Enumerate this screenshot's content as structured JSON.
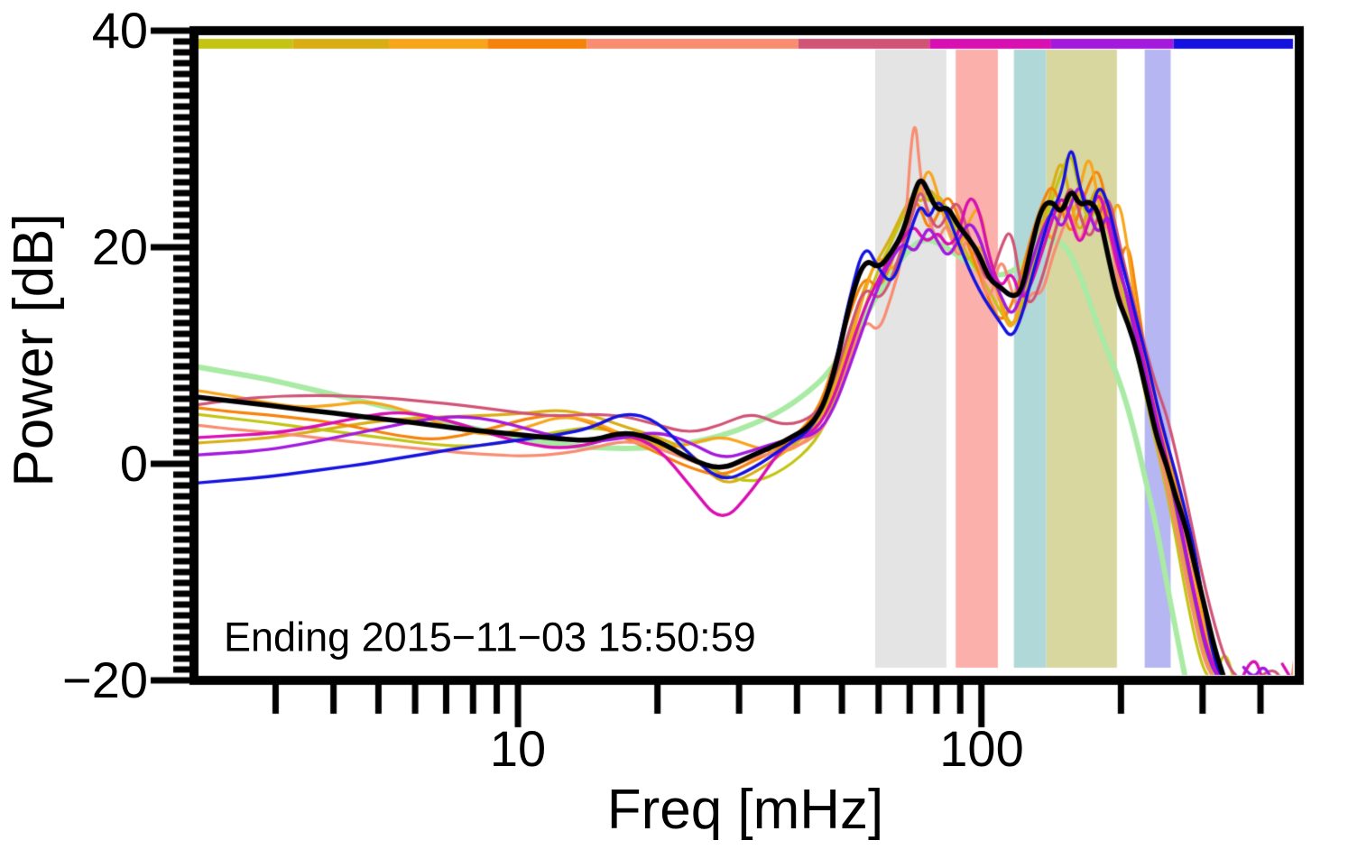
{
  "figure": {
    "annotation": "Ending 2015−11−03 15:50:59",
    "background": "#ffffff",
    "frame_color": "#000000"
  },
  "axes": {
    "x": {
      "label": "Freq [mHz]",
      "scale": "log",
      "min": 2,
      "max": 485,
      "major_ticks": [
        10,
        100
      ],
      "major_tick_labels": [
        "10",
        "100"
      ],
      "minor_ticks": [
        3,
        4,
        5,
        6,
        7,
        8,
        9,
        20,
        30,
        40,
        50,
        60,
        70,
        80,
        90,
        200,
        300,
        400
      ]
    },
    "y": {
      "label": "Power [dB]",
      "min": -20,
      "max": 40,
      "major_ticks": [
        40,
        20,
        0,
        -20
      ],
      "major_tick_labels": [
        "40",
        "20",
        "0",
        "−20"
      ],
      "minor_tick_step": 1
    }
  },
  "time_segment_bar": {
    "segments": [
      {
        "name": "window-1",
        "color": "#c3c414",
        "start": 0.0,
        "end": 0.086
      },
      {
        "name": "window-2",
        "color": "#d8ae14",
        "start": 0.086,
        "end": 0.174
      },
      {
        "name": "window-3",
        "color": "#f8a51b",
        "start": 0.174,
        "end": 0.264
      },
      {
        "name": "window-4",
        "color": "#f5830b",
        "start": 0.264,
        "end": 0.355
      },
      {
        "name": "window-5",
        "color": "#f88d72",
        "start": 0.355,
        "end": 0.548
      },
      {
        "name": "window-6",
        "color": "#d05476",
        "start": 0.548,
        "end": 0.668
      },
      {
        "name": "window-7",
        "color": "#d810b2",
        "start": 0.668,
        "end": 0.779
      },
      {
        "name": "window-8",
        "color": "#a31add",
        "start": 0.779,
        "end": 0.891
      },
      {
        "name": "window-9",
        "color": "#1512e0",
        "start": 0.891,
        "end": 1.0
      }
    ]
  },
  "bands": [
    {
      "name": "band-gray",
      "color": "#e4e4e4",
      "f1": 59,
      "f2": 84
    },
    {
      "name": "band-pink",
      "color": "#fbb0ab",
      "f1": 88,
      "f2": 108.5
    },
    {
      "name": "band-teal",
      "color": "#b0d8d8",
      "f1": 117.5,
      "f2": 138
    },
    {
      "name": "band-olive",
      "color": "#d8d7a0",
      "f1": 138,
      "f2": 196
    },
    {
      "name": "band-lavender",
      "color": "#b6b6f2",
      "f1": 225,
      "f2": 256
    }
  ],
  "chart_data": {
    "type": "line",
    "title": "",
    "xlabel": "Freq [mHz]",
    "ylabel": "Power [dB]",
    "xscale": "log",
    "xlim": [
      2,
      485
    ],
    "ylim": [
      -20,
      40
    ],
    "grid": false,
    "legend": "none",
    "x": [
      2,
      2.4,
      2.9,
      3.4,
      4,
      4.7,
      5.5,
      6.5,
      7.6,
      9,
      10.5,
      12.3,
      14.4,
      17,
      20,
      23.5,
      27.5,
      32,
      37.5,
      44,
      48,
      52,
      56,
      60,
      64,
      68,
      71.5,
      74,
      77,
      80.5,
      84.5,
      89,
      94,
      99,
      104,
      110,
      116,
      122,
      128,
      135,
      142,
      149,
      156,
      163,
      171,
      179,
      188,
      197,
      207,
      217,
      228,
      239,
      251,
      263,
      276,
      290,
      304,
      319,
      335,
      351,
      368,
      386,
      405,
      425,
      446,
      468,
      482
    ],
    "series": [
      {
        "name": "smooth-model",
        "color": "#a9eaa4",
        "width": 6,
        "values": [
          9.0,
          8.4,
          7.8,
          7.1,
          6.4,
          5.7,
          5.0,
          4.2,
          3.5,
          2.8,
          2.2,
          1.8,
          1.5,
          1.4,
          1.5,
          1.9,
          2.6,
          3.6,
          5.0,
          7.2,
          9.0,
          11.2,
          13.5,
          15.8,
          17.8,
          19.2,
          20.2,
          20.6,
          20.7,
          20.4,
          19.9,
          19.2,
          18.5,
          17.9,
          17.5,
          17.4,
          17.7,
          18.4,
          19.3,
          20.2,
          20.7,
          20.4,
          19.3,
          17.5,
          15.0,
          12.5,
          10.2,
          8.0,
          5.2,
          1.8,
          -2.2,
          -6.0,
          -11.0,
          -15.5,
          -20,
          null,
          null,
          null,
          null,
          null,
          null,
          null,
          null,
          null,
          null,
          null,
          null
        ]
      },
      {
        "name": "psd-window-2-gold",
        "color": "#d8ae14",
        "width": 3.2,
        "values": [
          1.9,
          2.1,
          2.4,
          2.8,
          3.3,
          3.8,
          4.1,
          4.3,
          4.4,
          4.5,
          4.7,
          5.0,
          4.5,
          3.4,
          2.5,
          1.2,
          -2.1,
          -1.0,
          1.0,
          3.4,
          7.0,
          12.0,
          16.5,
          19.0,
          21.0,
          23.5,
          25.0,
          24.0,
          25.5,
          24.5,
          22.0,
          20.0,
          18.5,
          20.5,
          18.0,
          15.0,
          12.5,
          14.0,
          18.0,
          22.0,
          25.5,
          28.5,
          24.0,
          21.0,
          24.0,
          26.0,
          22.0,
          18.5,
          15.0,
          11.5,
          7.0,
          3.0,
          -1.0,
          -5.0,
          -9.5,
          -14.0,
          -18.0,
          -20,
          null,
          null,
          null,
          null,
          null,
          null,
          null,
          null,
          null
        ]
      },
      {
        "name": "psd-window-1-yellowgreen",
        "color": "#c3c414",
        "width": 3.2,
        "values": [
          4.6,
          4.2,
          3.8,
          3.4,
          3.0,
          2.6,
          2.2,
          1.8,
          1.6,
          1.8,
          2.4,
          3.0,
          3.4,
          2.8,
          1.8,
          0.6,
          -1.0,
          -1.8,
          -0.6,
          2.0,
          5.5,
          10.0,
          14.5,
          18.0,
          20.5,
          23.0,
          24.5,
          25.5,
          24.0,
          25.0,
          23.5,
          21.0,
          19.0,
          17.5,
          16.0,
          14.0,
          12.5,
          14.5,
          17.5,
          21.0,
          24.5,
          27.0,
          29.0,
          25.0,
          22.0,
          24.5,
          21.5,
          17.5,
          14.0,
          10.0,
          5.5,
          1.5,
          -2.5,
          -7.0,
          -12.0,
          -16.5,
          -19.5,
          -20,
          -17.0,
          -20,
          null,
          null,
          null,
          null,
          null,
          null,
          null
        ]
      },
      {
        "name": "psd-window-4-darkorange",
        "color": "#f5830b",
        "width": 3.2,
        "values": [
          5.2,
          4.8,
          4.5,
          4.2,
          3.8,
          3.2,
          2.6,
          2.2,
          2.6,
          3.4,
          4.2,
          4.6,
          3.8,
          2.4,
          1.0,
          -0.4,
          -1.2,
          0.2,
          1.6,
          4.5,
          9.0,
          14.0,
          17.5,
          16.0,
          18.5,
          22.0,
          24.5,
          23.5,
          21.5,
          23.0,
          25.0,
          23.0,
          20.0,
          17.5,
          15.0,
          13.0,
          14.5,
          17.5,
          21.0,
          24.0,
          26.0,
          23.5,
          21.0,
          23.5,
          26.0,
          27.5,
          23.0,
          18.0,
          21.0,
          15.0,
          9.0,
          5.5,
          2.0,
          -1.5,
          -5.5,
          -10.0,
          -14.5,
          -18.5,
          -20,
          null,
          null,
          null,
          null,
          null,
          null,
          null,
          null
        ]
      },
      {
        "name": "psd-window-3-orange",
        "color": "#f8a51b",
        "width": 3.2,
        "values": [
          6.8,
          6.3,
          5.6,
          5.2,
          5.4,
          5.8,
          5.2,
          4.0,
          3.0,
          2.6,
          3.4,
          4.4,
          4.0,
          2.6,
          1.4,
          1.8,
          2.6,
          1.6,
          0.8,
          2.8,
          6.5,
          11.0,
          16.0,
          19.5,
          17.5,
          20.0,
          24.0,
          25.5,
          27.5,
          25.0,
          21.5,
          19.5,
          22.5,
          24.0,
          19.0,
          14.5,
          12.0,
          15.5,
          20.5,
          23.0,
          20.0,
          24.5,
          22.0,
          25.5,
          29.0,
          24.0,
          21.0,
          25.0,
          20.0,
          13.0,
          8.5,
          4.5,
          1.0,
          -2.5,
          -6.5,
          -11.0,
          -15.5,
          -19.5,
          -20,
          null,
          null,
          null,
          null,
          null,
          null,
          null,
          null
        ]
      },
      {
        "name": "psd-window-5-salmon",
        "color": "#f88d72",
        "width": 3.2,
        "values": [
          3.6,
          3.2,
          2.9,
          2.6,
          2.2,
          1.9,
          1.6,
          1.3,
          1.0,
          0.8,
          0.7,
          0.9,
          1.4,
          2.2,
          1.5,
          0.3,
          -0.7,
          0.6,
          1.2,
          2.4,
          5.0,
          9.5,
          13.5,
          12.0,
          15.5,
          19.5,
          33.5,
          26.0,
          22.5,
          20.5,
          22.5,
          18.5,
          21.5,
          18.5,
          14.5,
          19.5,
          16.0,
          13.5,
          16.0,
          15.5,
          19.0,
          21.5,
          23.5,
          20.0,
          23.5,
          21.0,
          22.5,
          16.5,
          13.0,
          10.0,
          6.0,
          2.0,
          -2.0,
          -6.0,
          -10.5,
          -15.0,
          -18.5,
          -20,
          null,
          null,
          null,
          null,
          null,
          null,
          null,
          -19.8,
          -15.3
        ]
      },
      {
        "name": "psd-window-6-crimson",
        "color": "#d05476",
        "width": 3.2,
        "values": [
          5.4,
          5.9,
          6.2,
          6.3,
          6.3,
          6.2,
          6.0,
          5.7,
          5.4,
          5.0,
          4.6,
          4.4,
          4.6,
          4.4,
          3.6,
          2.8,
          3.6,
          4.8,
          3.4,
          4.4,
          7.5,
          12.5,
          16.5,
          15.0,
          17.0,
          20.5,
          23.5,
          25.5,
          23.0,
          21.5,
          23.0,
          24.5,
          21.0,
          18.5,
          16.5,
          20.0,
          22.0,
          16.0,
          14.5,
          17.0,
          20.5,
          23.5,
          26.0,
          23.0,
          20.5,
          23.0,
          25.0,
          21.0,
          17.0,
          13.5,
          10.0,
          7.0,
          4.5,
          1.0,
          -3.0,
          -7.5,
          -11.5,
          -15.0,
          -18.0,
          -19.5,
          -20,
          null,
          -19.5,
          -18.8,
          -20,
          null,
          null
        ]
      },
      {
        "name": "psd-window-7-magenta",
        "color": "#d810b2",
        "width": 3.4,
        "values": [
          2.4,
          2.6,
          2.8,
          3.2,
          3.8,
          4.4,
          4.8,
          4.4,
          3.6,
          2.6,
          1.8,
          1.4,
          1.8,
          2.8,
          1.6,
          -2.0,
          -5.6,
          -2.5,
          1.8,
          3.0,
          6.0,
          10.5,
          14.5,
          17.0,
          19.5,
          21.0,
          22.0,
          21.0,
          20.5,
          21.5,
          20.0,
          21.0,
          25.0,
          23.5,
          19.0,
          16.0,
          18.0,
          15.0,
          16.5,
          19.5,
          22.5,
          25.0,
          22.5,
          20.0,
          22.5,
          25.5,
          22.0,
          18.0,
          15.5,
          12.0,
          8.0,
          4.0,
          0.5,
          -3.5,
          -8.0,
          -12.5,
          -16.5,
          -19.0,
          -20,
          null,
          -19.5,
          -17.5,
          -20,
          null,
          -18.5,
          -20,
          null
        ]
      },
      {
        "name": "psd-window-8-purple",
        "color": "#a31add",
        "width": 3.4,
        "values": [
          0.8,
          1.0,
          1.3,
          1.8,
          2.4,
          3.0,
          3.6,
          4.2,
          4.4,
          4.0,
          3.2,
          2.4,
          2.0,
          2.4,
          3.0,
          2.0,
          0.4,
          1.2,
          2.2,
          2.6,
          5.0,
          9.0,
          13.0,
          16.5,
          19.0,
          20.5,
          19.5,
          20.5,
          22.0,
          20.5,
          19.0,
          20.5,
          22.5,
          21.0,
          18.0,
          15.5,
          13.5,
          15.5,
          18.5,
          21.5,
          23.5,
          21.5,
          24.0,
          26.0,
          23.0,
          21.0,
          23.5,
          19.0,
          15.0,
          11.0,
          7.5,
          3.5,
          0.0,
          -4.0,
          -8.5,
          -13.0,
          -17.0,
          -19.5,
          -20,
          null,
          -18.8,
          -20,
          -18.5,
          -20,
          null,
          null,
          null
        ]
      },
      {
        "name": "psd-window-9-blue",
        "color": "#1512e0",
        "width": 3.4,
        "values": [
          -1.8,
          -1.5,
          -1.2,
          -0.8,
          -0.4,
          0.0,
          0.5,
          1.0,
          1.5,
          1.9,
          2.3,
          2.7,
          3.3,
          4.8,
          4.0,
          0.8,
          -1.7,
          -0.5,
          1.5,
          3.5,
          8.5,
          15.5,
          20.5,
          18.0,
          16.5,
          19.5,
          22.5,
          24.0,
          22.5,
          24.5,
          23.0,
          20.5,
          18.0,
          16.0,
          14.5,
          13.0,
          11.5,
          13.5,
          17.0,
          20.5,
          23.5,
          25.0,
          30.0,
          25.5,
          22.5,
          26.0,
          24.0,
          20.0,
          16.5,
          13.0,
          9.5,
          5.5,
          2.0,
          -1.0,
          -4.5,
          -8.5,
          -14.0,
          -18.5,
          -20,
          null,
          null,
          null,
          null,
          null,
          null,
          null,
          null
        ]
      },
      {
        "name": "mean-spectrum",
        "color": "#000000",
        "width": 5.5,
        "values": [
          6.2,
          5.8,
          5.4,
          5.0,
          4.7,
          4.3,
          4.0,
          3.6,
          3.2,
          2.9,
          2.6,
          2.3,
          2.1,
          3.0,
          2.2,
          0.4,
          -0.6,
          0.8,
          2.0,
          3.8,
          8.0,
          15.0,
          19.0,
          18.0,
          19.5,
          21.5,
          25.0,
          26.5,
          25.0,
          23.3,
          23.8,
          22.0,
          20.8,
          19.3,
          17.0,
          16.3,
          15.4,
          15.8,
          20.0,
          23.8,
          24.3,
          23.0,
          25.5,
          23.8,
          24.3,
          23.3,
          19.0,
          15.2,
          13.0,
          10.2,
          6.3,
          2.4,
          -0.1,
          -3.2,
          -5.8,
          -9.8,
          -13.4,
          -17.2,
          -20,
          null,
          null,
          null,
          null,
          null,
          null,
          null,
          null
        ]
      }
    ]
  }
}
